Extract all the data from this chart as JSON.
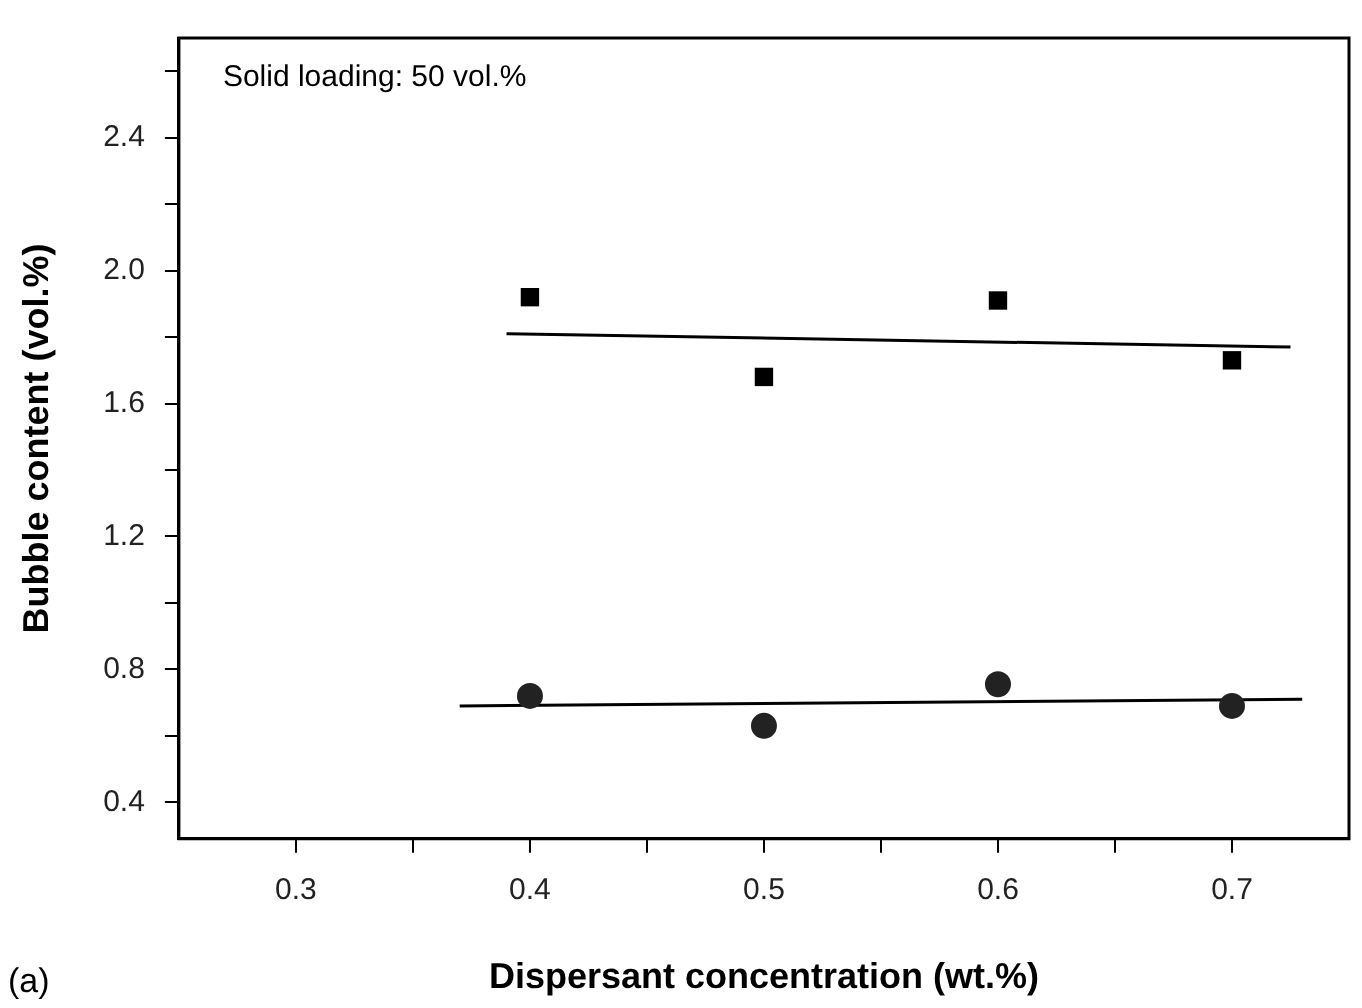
{
  "chart_data": {
    "type": "scatter",
    "xlabel": "Dispersant concentration (wt.%)",
    "ylabel": "Bubble content (vol.%)",
    "annotations": [
      "(a)",
      "Solid loading: 50 vol.%"
    ],
    "xlim": [
      0.25,
      0.75
    ],
    "xticks": [
      0.3,
      {
        "value": 0.35,
        "label": null
      },
      0.4,
      {
        "value": 0.45,
        "label": null
      },
      0.5,
      {
        "value": 0.55,
        "label": null
      },
      0.6,
      {
        "value": 0.65,
        "label": null
      },
      0.7
    ],
    "ylim": [
      0.29,
      2.7
    ],
    "yticks": [
      0.4,
      {
        "value": 0.6,
        "label": null
      },
      0.8,
      {
        "value": 1.0,
        "label": null
      },
      1.2,
      {
        "value": 1.4,
        "label": null
      },
      1.6,
      {
        "value": 1.8,
        "label": null
      },
      {
        "value": 2.0,
        "label": "2.0"
      },
      {
        "value": 2.2,
        "label": null
      },
      2.4,
      {
        "value": 2.6,
        "label": null
      }
    ],
    "grid": false,
    "series": [
      {
        "marker": "square",
        "color": "#000000",
        "x": [
          0.4,
          0.5,
          0.6,
          0.7
        ],
        "values": [
          1.92,
          1.68,
          1.91,
          1.73
        ]
      },
      {
        "marker": "circle",
        "color": "#222222",
        "x": [
          0.4,
          0.5,
          0.6,
          0.7
        ],
        "values": [
          0.72,
          0.63,
          0.755,
          0.69
        ]
      },
      {
        "type": "line",
        "marker": "none",
        "color": "#000000",
        "x": [
          0.39,
          0.725
        ],
        "values": [
          1.81,
          1.77
        ]
      },
      {
        "type": "line",
        "marker": "none",
        "color": "#000000",
        "x": [
          0.37,
          0.73
        ],
        "values": [
          0.69,
          0.71
        ]
      }
    ]
  }
}
